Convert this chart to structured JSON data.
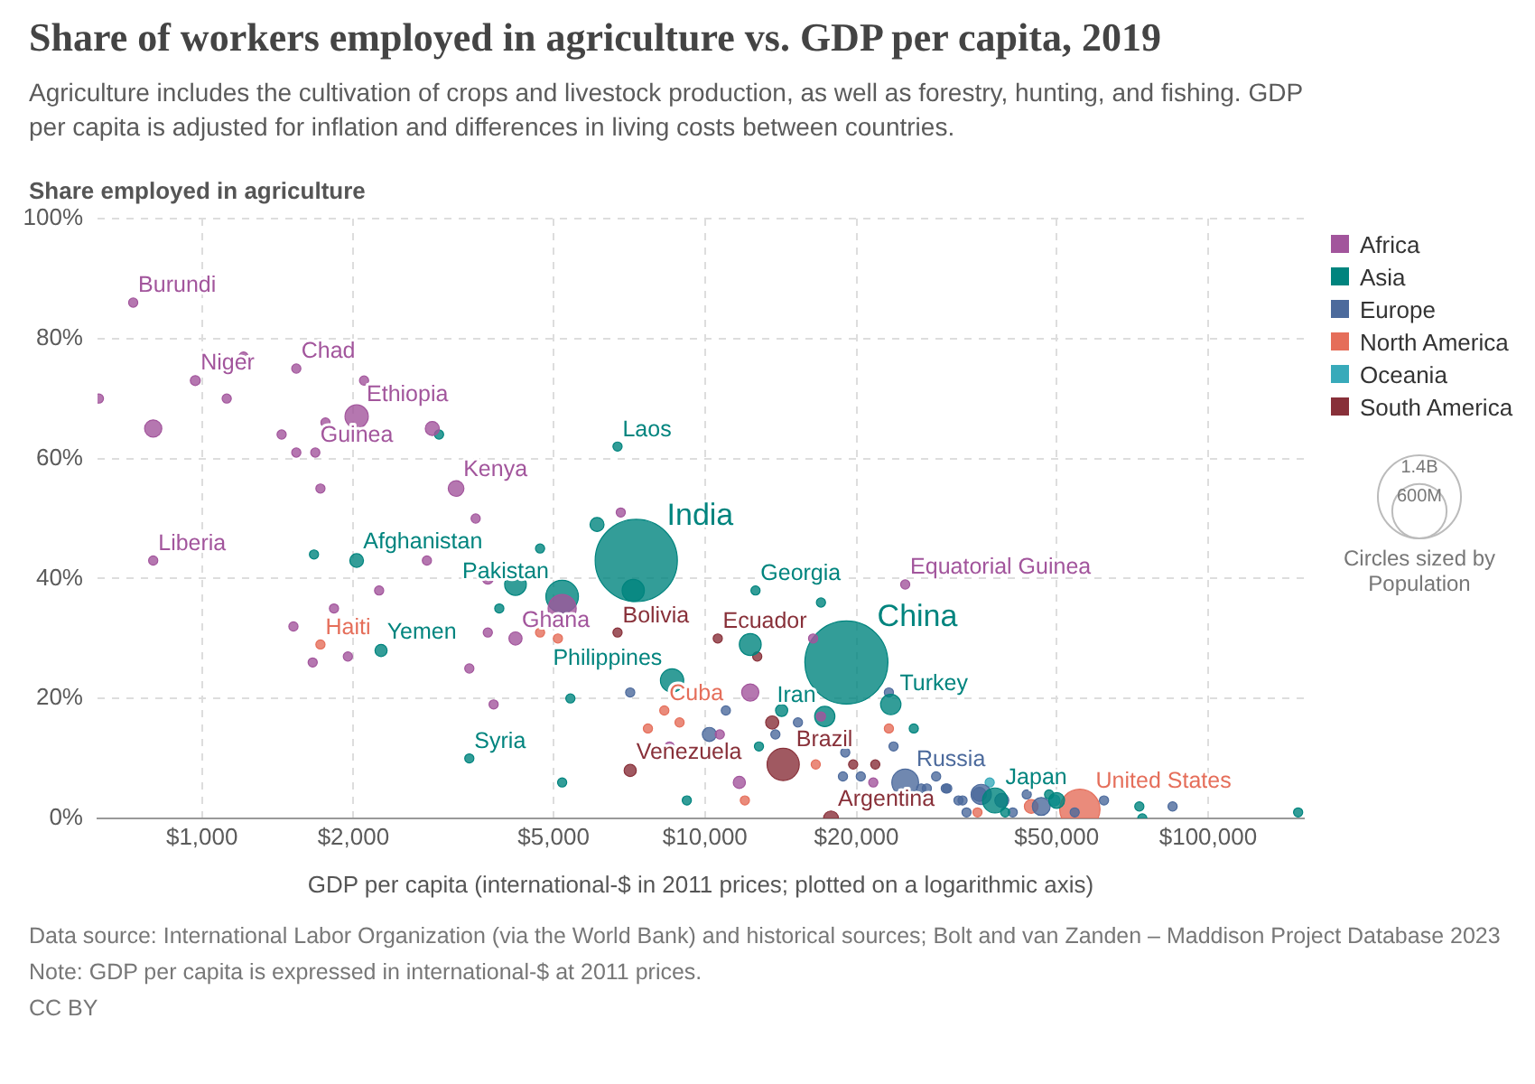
{
  "chart_data": {
    "type": "bubble",
    "title": "Share of workers employed in agriculture vs. GDP per capita, 2019",
    "subtitle": "Agriculture includes the cultivation of crops and livestock production, as well as forestry, hunting, and fishing. GDP per capita is adjusted for inflation and differences in living costs between countries.",
    "xlabel": "GDP per capita (international-$ in 2011 prices; plotted on a logarithmic axis)",
    "ylabel": "Share employed in agriculture",
    "legend_title": "Circles sized by Population",
    "log": "x",
    "grid": true,
    "legend": "right",
    "xlim": [
      620,
      155000
    ],
    "xticks": [
      {
        "value": 1000,
        "label": "$1,000"
      },
      {
        "value": 2000,
        "label": "$2,000"
      },
      {
        "value": 5000,
        "label": "$5,000"
      },
      {
        "value": 10000,
        "label": "$10,000"
      },
      {
        "value": 20000,
        "label": "$20,000"
      },
      {
        "value": 50000,
        "label": "$50,000"
      },
      {
        "value": 100000,
        "label": "$100,000"
      }
    ],
    "ylim": [
      0,
      100
    ],
    "yticks": [
      {
        "value": 0,
        "label": "0%"
      },
      {
        "value": 20,
        "label": "20%"
      },
      {
        "value": 40,
        "label": "40%"
      },
      {
        "value": 60,
        "label": "60%"
      },
      {
        "value": 80,
        "label": "80%"
      },
      {
        "value": 100,
        "label": "100%"
      }
    ],
    "size_legend": [
      {
        "value": 1400,
        "label": "1.4B"
      },
      {
        "value": 600,
        "label": "600M"
      }
    ],
    "series": [
      {
        "name": "Africa",
        "color": "#a2559c",
        "x": [
          730,
          624,
          800,
          970,
          1210,
          1120,
          1540,
          1440,
          1760,
          1540,
          1680,
          1720,
          2100,
          2030,
          2870,
          3200,
          3500,
          6800,
          800,
          2250,
          3700,
          1520,
          1830,
          1950,
          1660,
          3700,
          4200,
          5200,
          3400,
          3800,
          2800,
          12300,
          11700,
          8500,
          10700,
          21600,
          17000,
          25000,
          16400
        ],
        "values": [
          86,
          70,
          65,
          73,
          77,
          70,
          75,
          64,
          66,
          61,
          61,
          55,
          73,
          67,
          65,
          55,
          50,
          51,
          43,
          38,
          40,
          32,
          35,
          27,
          26,
          31,
          30,
          35,
          25,
          19,
          43,
          21,
          6,
          12,
          14,
          6,
          17,
          39,
          30
        ],
        "sizes": [
          17,
          17,
          60,
          20,
          17,
          17,
          17,
          17,
          17,
          17,
          17,
          17,
          17,
          110,
          40,
          50,
          17,
          17,
          17,
          17,
          25,
          17,
          17,
          17,
          17,
          17,
          35,
          160,
          17,
          17,
          17,
          60,
          30,
          17,
          17,
          17,
          17,
          17,
          17
        ]
      },
      {
        "name": "Asia",
        "color": "#00847e",
        "x": [
          7300,
          19100,
          6700,
          2960,
          6100,
          2030,
          1670,
          4700,
          4200,
          5200,
          7200,
          3900,
          2270,
          5400,
          3400,
          5200,
          9200,
          12600,
          17000,
          8600,
          12300,
          17300,
          14200,
          12800,
          23400,
          26000,
          37700,
          48300,
          50000,
          73000,
          74000,
          151000,
          39500
        ],
        "values": [
          43,
          26,
          62,
          64,
          49,
          43,
          44,
          45,
          39,
          37,
          38,
          35,
          28,
          20,
          10,
          6,
          3,
          38,
          36,
          23,
          29,
          17,
          18,
          12,
          19,
          15,
          3,
          4,
          3,
          2,
          0,
          1,
          1
        ],
        "sizes": [
          1370,
          1400,
          17,
          17,
          40,
          38,
          17,
          17,
          95,
          215,
          100,
          17,
          30,
          17,
          17,
          17,
          17,
          17,
          17,
          110,
          97,
          83,
          30,
          17,
          84,
          17,
          126,
          17,
          51,
          17,
          17,
          17,
          17
        ]
      },
      {
        "name": "Europe",
        "color": "#4c6a9c",
        "x": [
          25000,
          7100,
          10200,
          11000,
          13800,
          15300,
          19000,
          18800,
          20400,
          23200,
          23700,
          26900,
          28800,
          30100,
          32500,
          35100,
          27600,
          30300,
          31900,
          35400,
          33100,
          38900,
          43600,
          40900,
          46600,
          54300,
          62100,
          85000
        ],
        "values": [
          6,
          21,
          14,
          18,
          14,
          16,
          11,
          7,
          7,
          21,
          12,
          5,
          7,
          5,
          3,
          4,
          5,
          5,
          3,
          4,
          1,
          3,
          4,
          1,
          2,
          1,
          3,
          2
        ],
        "sizes": [
          145,
          17,
          40,
          17,
          17,
          17,
          17,
          17,
          17,
          17,
          17,
          17,
          17,
          17,
          17,
          40,
          17,
          17,
          17,
          83,
          17,
          40,
          17,
          17,
          65,
          17,
          17,
          17
        ]
      },
      {
        "name": "North America",
        "color": "#e56e5a",
        "x": [
          55600,
          1720,
          4700,
          5100,
          7700,
          8300,
          8900,
          12000,
          16600,
          23200,
          34800,
          44500
        ],
        "values": [
          1.5,
          29,
          31,
          30,
          15,
          18,
          16,
          3,
          9,
          15,
          1,
          2
        ],
        "sizes": [
          330,
          17,
          17,
          17,
          17,
          17,
          17,
          17,
          17,
          17,
          17,
          38
        ]
      },
      {
        "name": "Oceania",
        "color": "#38aaba",
        "x": [
          36800,
          49500
        ],
        "values": [
          6,
          3
        ],
        "sizes": [
          17,
          25
        ]
      },
      {
        "name": "South America",
        "color": "#883039",
        "x": [
          6700,
          7100,
          10600,
          13600,
          12700,
          14300,
          17800,
          19700,
          21800
        ],
        "values": [
          31,
          8,
          30,
          16,
          27,
          9,
          0,
          9,
          9
        ],
        "sizes": [
          17,
          30,
          17,
          35,
          17,
          210,
          45,
          17,
          17
        ]
      }
    ],
    "annotations": [
      {
        "text": "Burundi",
        "x": 730,
        "y": 86
      },
      {
        "text": "Niger",
        "x": 970,
        "y": 73
      },
      {
        "text": "Chad",
        "x": 1540,
        "y": 75
      },
      {
        "text": "Ethiopia",
        "x": 2030,
        "y": 67
      },
      {
        "text": "Guinea",
        "x": 1680,
        "y": 61
      },
      {
        "text": "Kenya",
        "x": 3200,
        "y": 55
      },
      {
        "text": "Liberia",
        "x": 800,
        "y": 43
      },
      {
        "text": "Ghana",
        "x": 4200,
        "y": 30
      },
      {
        "text": "Equatorial Guinea",
        "x": 25000,
        "y": 39
      },
      {
        "text": "Laos",
        "x": 6700,
        "y": 62
      },
      {
        "text": "India",
        "x": 7300,
        "y": 43
      },
      {
        "text": "Afghanistan",
        "x": 2030,
        "y": 43
      },
      {
        "text": "Pakistan",
        "x": 5200,
        "y": 37
      },
      {
        "text": "Georgia",
        "x": 12600,
        "y": 38
      },
      {
        "text": "Yemen",
        "x": 2270,
        "y": 28
      },
      {
        "text": "China",
        "x": 19100,
        "y": 26
      },
      {
        "text": "Philippines",
        "x": 8600,
        "y": 23
      },
      {
        "text": "Iran",
        "x": 17300,
        "y": 17
      },
      {
        "text": "Turkey",
        "x": 23400,
        "y": 19
      },
      {
        "text": "Syria",
        "x": 3400,
        "y": 10
      },
      {
        "text": "Japan",
        "x": 37700,
        "y": 3
      },
      {
        "text": "Haiti",
        "x": 1720,
        "y": 29
      },
      {
        "text": "Cuba",
        "x": 8300,
        "y": 18
      },
      {
        "text": "United States",
        "x": 55600,
        "y": 1.5
      },
      {
        "text": "Bolivia",
        "x": 6700,
        "y": 31
      },
      {
        "text": "Ecuador",
        "x": 10600,
        "y": 30
      },
      {
        "text": "Venezuela",
        "x": 7100,
        "y": 8
      },
      {
        "text": "Brazil",
        "x": 14300,
        "y": 9
      },
      {
        "text": "Argentina",
        "x": 17800,
        "y": 0
      },
      {
        "text": "Russia",
        "x": 25000,
        "y": 6
      },
      "Data source: International Labor Organization (via the World Bank) and historical sources; Bolt and van Zanden – Maddison Project Database 2023",
      "Note: GDP per capita is expressed in international-$ at 2011 prices.",
      "CC BY"
    ]
  }
}
